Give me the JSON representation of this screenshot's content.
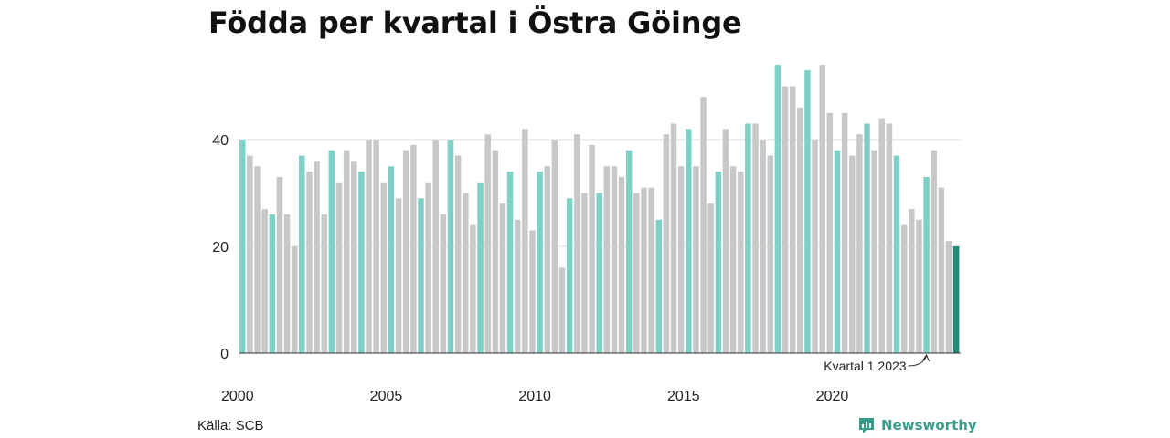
{
  "title": "Födda per kvartal i Östra Göinge",
  "source": "Källa: SCB",
  "brand": {
    "name": "Newsworthy",
    "icon": "newsworthy-logo-icon"
  },
  "colors": {
    "q1": "#7fd1c8",
    "other": "#c8c8c8",
    "latest": "#1f8a7a",
    "grid": "#dddddd",
    "baseline": "#333333",
    "brand": "#3a9c8c"
  },
  "chart_data": {
    "type": "bar",
    "title": "Födda per kvartal i Östra Göinge",
    "xlabel": "",
    "ylabel": "",
    "ylim": [
      0,
      56
    ],
    "yticks": [
      0,
      20,
      40
    ],
    "xticks": [
      "2000",
      "2005",
      "2010",
      "2015",
      "2020"
    ],
    "grid": true,
    "start_year": 2000,
    "quarters_per_year": 4,
    "annotation": {
      "text": "Kvartal 1 2023",
      "year": 2023,
      "quarter": 1
    },
    "values": [
      40,
      37,
      35,
      27,
      26,
      33,
      26,
      20,
      37,
      34,
      36,
      26,
      38,
      32,
      38,
      36,
      34,
      40,
      40,
      32,
      35,
      29,
      38,
      39,
      29,
      32,
      40,
      26,
      40,
      37,
      30,
      24,
      32,
      41,
      38,
      28,
      34,
      25,
      42,
      23,
      34,
      35,
      40,
      16,
      29,
      41,
      30,
      39,
      30,
      35,
      35,
      33,
      38,
      30,
      31,
      31,
      25,
      41,
      43,
      35,
      42,
      35,
      48,
      28,
      34,
      42,
      35,
      34,
      43,
      43,
      40,
      37,
      54,
      50,
      50,
      46,
      53,
      40,
      54,
      45,
      38,
      45,
      37,
      41,
      43,
      38,
      44,
      43,
      37,
      24,
      27,
      25,
      33,
      38,
      31,
      21,
      20
    ]
  }
}
